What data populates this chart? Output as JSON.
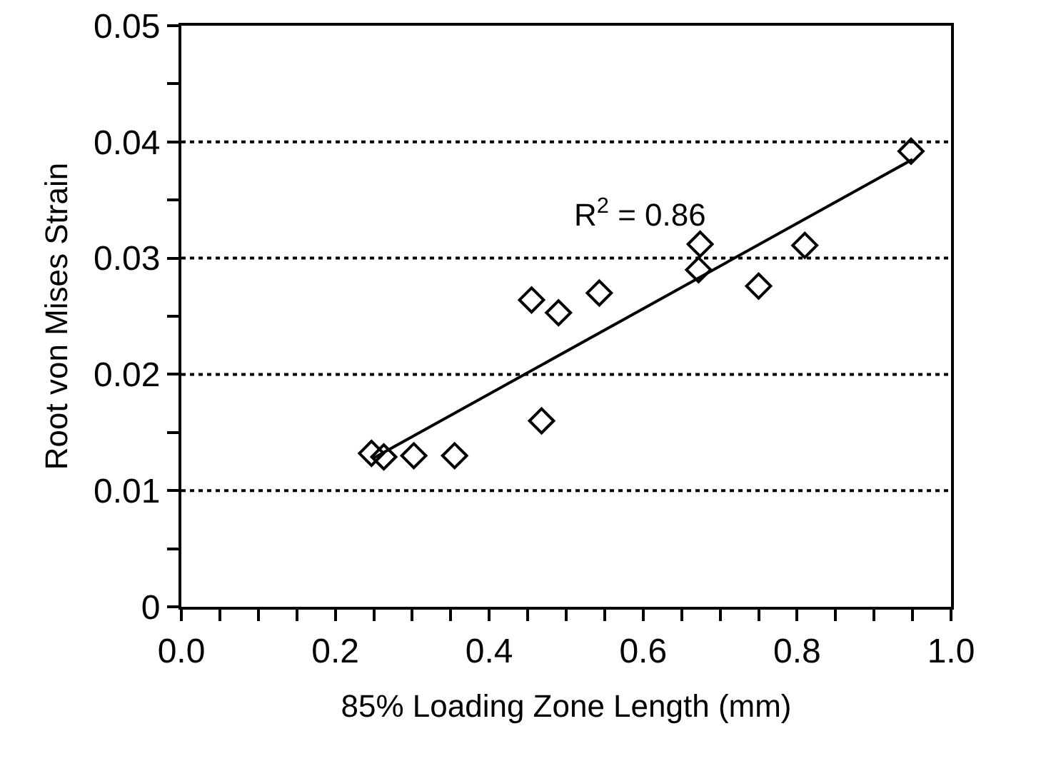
{
  "chart_data": {
    "type": "scatter",
    "xlabel": "85% Loading Zone Length (mm)",
    "ylabel": "Root von Mises Strain",
    "series": [
      {
        "color": "#000000",
        "marker": "diamond",
        "x": [
          0.247,
          0.263,
          0.302,
          0.355,
          0.455,
          0.468,
          0.49,
          0.543,
          0.672,
          0.674,
          0.75,
          0.81,
          0.948
        ],
        "values": [
          0.0132,
          0.0129,
          0.013,
          0.013,
          0.0264,
          0.016,
          0.0253,
          0.027,
          0.029,
          0.0312,
          0.0276,
          0.0311,
          0.0392
        ]
      },
      {
        "type": "line",
        "color": "#000000",
        "line_style": "solid",
        "x": [
          0.25,
          0.95
        ],
        "values": [
          0.0128,
          0.0385
        ]
      }
    ],
    "xlim": [
      0,
      1
    ],
    "ylim": [
      0,
      0.05
    ],
    "xticks": [
      {
        "value": 0,
        "label": "0.0"
      },
      {
        "value": 0.05,
        "label": null
      },
      {
        "value": 0.1,
        "label": null
      },
      {
        "value": 0.15,
        "label": null
      },
      {
        "value": 0.2,
        "label": "0.2"
      },
      {
        "value": 0.25,
        "label": null
      },
      {
        "value": 0.3,
        "label": null
      },
      {
        "value": 0.35,
        "label": null
      },
      {
        "value": 0.4,
        "label": "0.4"
      },
      {
        "value": 0.45,
        "label": null
      },
      {
        "value": 0.5,
        "label": null
      },
      {
        "value": 0.55,
        "label": null
      },
      {
        "value": 0.6,
        "label": "0.6"
      },
      {
        "value": 0.65,
        "label": null
      },
      {
        "value": 0.7,
        "label": null
      },
      {
        "value": 0.75,
        "label": null
      },
      {
        "value": 0.8,
        "label": "0.8"
      },
      {
        "value": 0.85,
        "label": null
      },
      {
        "value": 0.9,
        "label": null
      },
      {
        "value": 0.95,
        "label": null
      },
      {
        "value": 1,
        "label": "1.0"
      }
    ],
    "yticks": [
      0,
      {
        "value": 0.005,
        "label": null
      },
      0.01,
      {
        "value": 0.015,
        "label": null
      },
      0.02,
      {
        "value": 0.025,
        "label": null
      },
      0.03,
      {
        "value": 0.035,
        "label": null
      },
      0.04,
      {
        "value": 0.045,
        "label": null
      },
      0.05
    ],
    "grid": "y",
    "annotations": [
      "R$^{2}$ = 0.86"
    ]
  }
}
